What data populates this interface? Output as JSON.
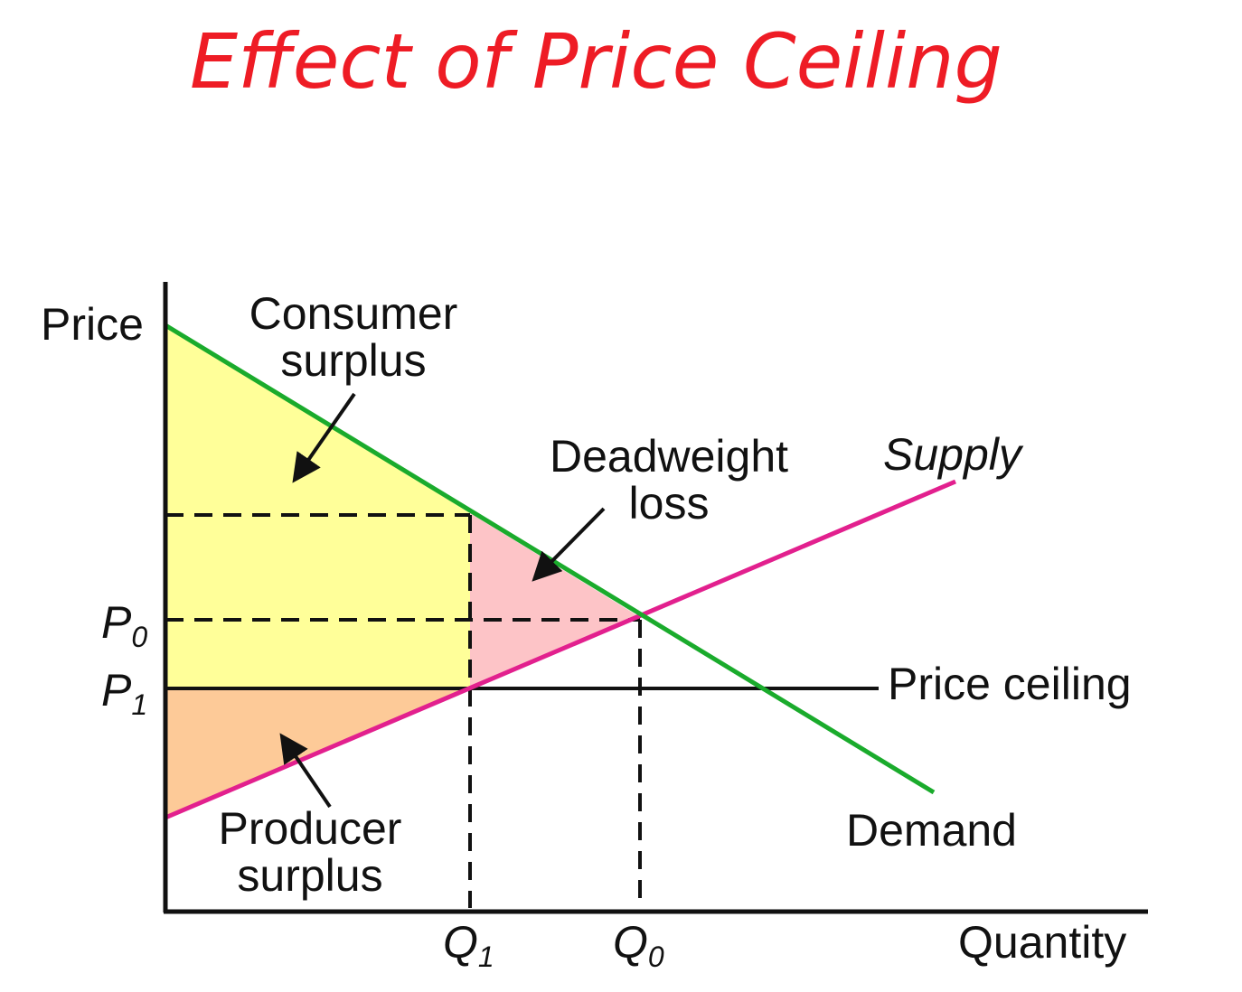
{
  "title": "Effect of Price Ceiling",
  "chart_data": {
    "type": "line",
    "axes": {
      "y_label": "Price",
      "x_label": "Quantity",
      "y_ticks": [
        {
          "main": "P",
          "sub": "0"
        },
        {
          "main": "P",
          "sub": "1"
        }
      ],
      "x_ticks": [
        {
          "main": "Q",
          "sub": "1"
        },
        {
          "main": "Q",
          "sub": "0"
        }
      ]
    },
    "curves": {
      "supply": "Supply",
      "demand": "Demand",
      "price_ceiling": "Price ceiling"
    },
    "regions": {
      "consumer_surplus": "Consumer\nsurplus",
      "deadweight_loss": "Deadweight\nloss",
      "producer_surplus": "Producer\nsurplus"
    },
    "colors": {
      "title": "#ee1c25",
      "demand": "#1aab2c",
      "supply": "#e2208e",
      "consumer_surplus": "#ffff99",
      "producer_surplus": "#fdca98",
      "deadweight_loss": "#fdc4c7"
    }
  }
}
